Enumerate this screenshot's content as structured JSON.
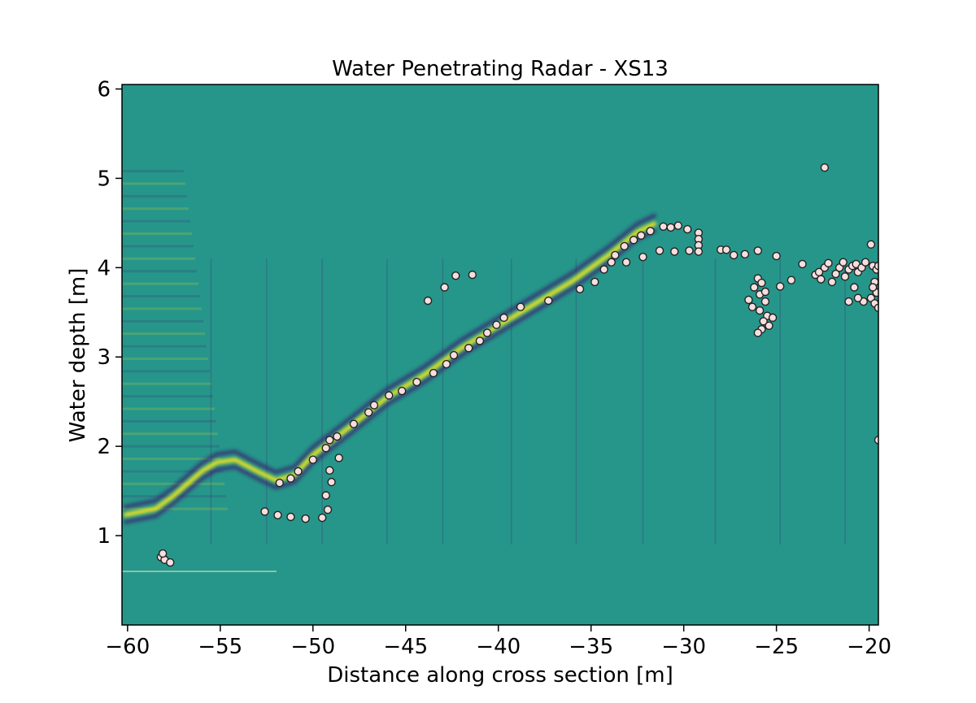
{
  "chart_data": {
    "type": "scatter",
    "title": "Water Penetrating Radar - XS13",
    "xlabel": "Distance along cross section [m]",
    "ylabel": "Water depth [m]",
    "xlim": [
      -60.3,
      -19.5
    ],
    "ylim": [
      0,
      6.05
    ],
    "xticks": [
      -60,
      -55,
      -50,
      -45,
      -40,
      -35,
      -30,
      -25,
      -20
    ],
    "xtick_labels": [
      "−60",
      "−55",
      "−50",
      "−45",
      "−40",
      "−35",
      "−30",
      "−25",
      "−20"
    ],
    "yticks": [
      1,
      2,
      3,
      4,
      5,
      6
    ],
    "ytick_labels": [
      "1",
      "2",
      "3",
      "4",
      "5",
      "6"
    ],
    "grid": false,
    "background_color": "#26968a",
    "radargram_colors": {
      "positive": "#f2e51e",
      "negative": "#3b1d6e",
      "mid": "#26968a"
    },
    "marker_fill": "#f7dede",
    "marker_edge": "#222222",
    "reflector": [
      [
        -60.2,
        1.23
      ],
      [
        -58.5,
        1.3
      ],
      [
        -57.5,
        1.45
      ],
      [
        -56,
        1.72
      ],
      [
        -55.2,
        1.82
      ],
      [
        -54.2,
        1.85
      ],
      [
        -53,
        1.72
      ],
      [
        -52,
        1.62
      ],
      [
        -51,
        1.68
      ],
      [
        -50,
        1.9
      ],
      [
        -48,
        2.22
      ],
      [
        -46,
        2.55
      ],
      [
        -44,
        2.8
      ],
      [
        -42,
        3.1
      ],
      [
        -40,
        3.35
      ],
      [
        -38,
        3.6
      ],
      [
        -36,
        3.85
      ],
      [
        -34,
        4.15
      ],
      [
        -32.5,
        4.4
      ],
      [
        -31.5,
        4.5
      ]
    ],
    "points": [
      {
        "x": -58.2,
        "y": 0.76
      },
      {
        "x": -58.0,
        "y": 0.73
      },
      {
        "x": -57.7,
        "y": 0.7
      },
      {
        "x": -58.1,
        "y": 0.8
      },
      {
        "x": -52.6,
        "y": 1.27
      },
      {
        "x": -51.9,
        "y": 1.23
      },
      {
        "x": -51.2,
        "y": 1.21
      },
      {
        "x": -50.4,
        "y": 1.19
      },
      {
        "x": -49.5,
        "y": 1.2
      },
      {
        "x": -49.2,
        "y": 1.29
      },
      {
        "x": -49.3,
        "y": 1.45
      },
      {
        "x": -49.0,
        "y": 1.6
      },
      {
        "x": -49.1,
        "y": 1.73
      },
      {
        "x": -48.6,
        "y": 1.87
      },
      {
        "x": -51.8,
        "y": 1.59
      },
      {
        "x": -51.2,
        "y": 1.64
      },
      {
        "x": -50.8,
        "y": 1.72
      },
      {
        "x": -50.0,
        "y": 1.85
      },
      {
        "x": -49.3,
        "y": 1.98
      },
      {
        "x": -49.1,
        "y": 2.07
      },
      {
        "x": -48.7,
        "y": 2.11
      },
      {
        "x": -47.8,
        "y": 2.25
      },
      {
        "x": -47.0,
        "y": 2.38
      },
      {
        "x": -46.7,
        "y": 2.46
      },
      {
        "x": -45.9,
        "y": 2.57
      },
      {
        "x": -45.2,
        "y": 2.62
      },
      {
        "x": -44.4,
        "y": 2.72
      },
      {
        "x": -43.5,
        "y": 2.82
      },
      {
        "x": -42.8,
        "y": 2.92
      },
      {
        "x": -42.4,
        "y": 3.02
      },
      {
        "x": -41.6,
        "y": 3.1
      },
      {
        "x": -41.0,
        "y": 3.18
      },
      {
        "x": -40.6,
        "y": 3.27
      },
      {
        "x": -40.1,
        "y": 3.36
      },
      {
        "x": -39.7,
        "y": 3.44
      },
      {
        "x": -38.8,
        "y": 3.56
      },
      {
        "x": -37.3,
        "y": 3.63
      },
      {
        "x": -43.8,
        "y": 3.63
      },
      {
        "x": -42.9,
        "y": 3.78
      },
      {
        "x": -42.3,
        "y": 3.91
      },
      {
        "x": -41.4,
        "y": 3.92
      },
      {
        "x": -35.6,
        "y": 3.76
      },
      {
        "x": -34.8,
        "y": 3.84
      },
      {
        "x": -34.3,
        "y": 3.98
      },
      {
        "x": -33.9,
        "y": 4.06
      },
      {
        "x": -33.7,
        "y": 4.14
      },
      {
        "x": -33.2,
        "y": 4.24
      },
      {
        "x": -32.7,
        "y": 4.31
      },
      {
        "x": -32.3,
        "y": 4.36
      },
      {
        "x": -31.8,
        "y": 4.41
      },
      {
        "x": -33.1,
        "y": 4.06
      },
      {
        "x": -32.2,
        "y": 4.12
      },
      {
        "x": -31.3,
        "y": 4.19
      },
      {
        "x": -30.5,
        "y": 4.18
      },
      {
        "x": -29.7,
        "y": 4.19
      },
      {
        "x": -31.1,
        "y": 4.46
      },
      {
        "x": -30.7,
        "y": 4.45
      },
      {
        "x": -30.3,
        "y": 4.47
      },
      {
        "x": -29.8,
        "y": 4.43
      },
      {
        "x": -29.2,
        "y": 4.39
      },
      {
        "x": -29.2,
        "y": 4.32
      },
      {
        "x": -29.2,
        "y": 4.25
      },
      {
        "x": -29.2,
        "y": 4.18
      },
      {
        "x": -28.0,
        "y": 4.2
      },
      {
        "x": -27.7,
        "y": 4.2
      },
      {
        "x": -27.3,
        "y": 4.14
      },
      {
        "x": -26.7,
        "y": 4.15
      },
      {
        "x": -26.0,
        "y": 4.19
      },
      {
        "x": -25.0,
        "y": 4.13
      },
      {
        "x": -26.5,
        "y": 3.64
      },
      {
        "x": -26.2,
        "y": 3.78
      },
      {
        "x": -26.0,
        "y": 3.88
      },
      {
        "x": -25.8,
        "y": 3.83
      },
      {
        "x": -25.9,
        "y": 3.7
      },
      {
        "x": -26.3,
        "y": 3.56
      },
      {
        "x": -25.6,
        "y": 3.62
      },
      {
        "x": -25.9,
        "y": 3.52
      },
      {
        "x": -25.5,
        "y": 3.46
      },
      {
        "x": -25.7,
        "y": 3.4
      },
      {
        "x": -25.4,
        "y": 3.35
      },
      {
        "x": -25.8,
        "y": 3.31
      },
      {
        "x": -26.0,
        "y": 3.27
      },
      {
        "x": -25.2,
        "y": 3.44
      },
      {
        "x": -25.6,
        "y": 3.73
      },
      {
        "x": -24.8,
        "y": 3.79
      },
      {
        "x": -24.2,
        "y": 3.86
      },
      {
        "x": -23.6,
        "y": 4.04
      },
      {
        "x": -22.9,
        "y": 3.92
      },
      {
        "x": -22.7,
        "y": 3.95
      },
      {
        "x": -22.6,
        "y": 3.87
      },
      {
        "x": -22.4,
        "y": 4.0
      },
      {
        "x": -22.2,
        "y": 4.05
      },
      {
        "x": -22.0,
        "y": 3.84
      },
      {
        "x": -21.8,
        "y": 3.93
      },
      {
        "x": -21.6,
        "y": 4.0
      },
      {
        "x": -21.4,
        "y": 4.06
      },
      {
        "x": -21.3,
        "y": 3.9
      },
      {
        "x": -21.1,
        "y": 3.98
      },
      {
        "x": -20.9,
        "y": 4.02
      },
      {
        "x": -20.8,
        "y": 3.78
      },
      {
        "x": -20.7,
        "y": 4.04
      },
      {
        "x": -20.6,
        "y": 3.95
      },
      {
        "x": -20.4,
        "y": 4.0
      },
      {
        "x": -20.3,
        "y": 3.62
      },
      {
        "x": -20.2,
        "y": 4.06
      },
      {
        "x": -21.1,
        "y": 3.62
      },
      {
        "x": -20.6,
        "y": 3.66
      },
      {
        "x": -19.9,
        "y": 4.26
      },
      {
        "x": -19.8,
        "y": 4.02
      },
      {
        "x": -19.7,
        "y": 3.84
      },
      {
        "x": -19.6,
        "y": 3.72
      },
      {
        "x": -19.9,
        "y": 3.66
      },
      {
        "x": -19.7,
        "y": 3.6
      },
      {
        "x": -19.5,
        "y": 3.55
      },
      {
        "x": -19.6,
        "y": 3.98
      },
      {
        "x": -19.5,
        "y": 4.02
      },
      {
        "x": -19.8,
        "y": 3.78
      },
      {
        "x": -22.4,
        "y": 5.12
      },
      {
        "x": -19.5,
        "y": 2.07
      }
    ]
  }
}
